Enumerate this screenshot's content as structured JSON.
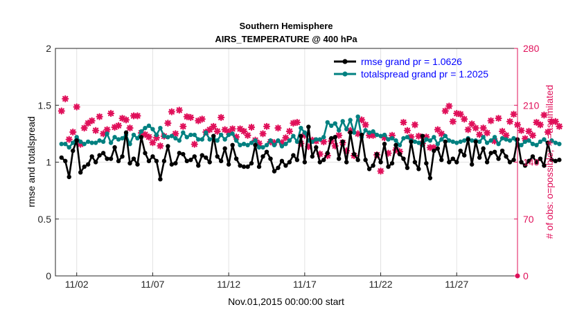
{
  "chart_data": {
    "type": "line",
    "title": [
      "Southern Hemisphere",
      "AIRS_TEMPERATURE @ 400 hPa"
    ],
    "xlabel": "Nov.01,2015 00:00:00 start",
    "ylabel_left": "rmse and totalspread",
    "ylabel_right": "# of obs: o=possible; ∗=assimilated",
    "x_ticks": [
      {
        "label": "11/02",
        "day": 2
      },
      {
        "label": "11/07",
        "day": 7
      },
      {
        "label": "11/12",
        "day": 12
      },
      {
        "label": "11/17",
        "day": 17
      },
      {
        "label": "11/22",
        "day": 22
      },
      {
        "label": "11/27",
        "day": 27
      }
    ],
    "xlim_days": [
      0.6,
      31.0
    ],
    "ylim_left": [
      0,
      2
    ],
    "yticks_left": [
      "0",
      "0.5",
      "1",
      "1.5",
      "2"
    ],
    "ylim_right": [
      0,
      280
    ],
    "yticks_right": [
      "0",
      "70",
      "140",
      "210",
      "280"
    ],
    "grid": true,
    "legend_position": "top-right",
    "series": [
      {
        "name": "rmse grand pr = 1.0626",
        "color": "#000000",
        "values": [
          1.04,
          1.01,
          0.87,
          1.1,
          1.19,
          0.91,
          0.96,
          0.98,
          1.05,
          1.0,
          1.06,
          1.08,
          1.03,
          1.03,
          1.13,
          1.01,
          1.05,
          1.26,
          0.99,
          1.03,
          0.98,
          1.22,
          1.08,
          1.01,
          1.05,
          1.01,
          0.85,
          1.01,
          1.14,
          0.98,
          0.99,
          1.08,
          1.07,
          1.01,
          1.02,
          1.05,
          0.97,
          1.06,
          1.04,
          1.0,
          1.23,
          1.05,
          1.01,
          1.12,
          0.98,
          1.15,
          1.03,
          0.97,
          0.96,
          0.96,
          0.99,
          1.15,
          0.96,
          1.05,
          1.09,
          1.03,
          0.92,
          0.95,
          1.01,
          0.97,
          1.0,
          1.06,
          1.02,
          1.23,
          1.0,
          1.31,
          1.05,
          1.13,
          1.0,
          1.02,
          1.08,
          1.21,
          1.22,
          1.03,
          1.18,
          1.0,
          1.26,
          1.07,
          1.02,
          1.24,
          1.02,
          0.94,
          0.97,
          1.07,
          1.0,
          1.16,
          0.96,
          0.99,
          1.15,
          1.07,
          1.03,
          0.95,
          1.18,
          1.0,
          0.94,
          1.23,
          0.99,
          0.86,
          1.1,
          1.12,
          1.02,
          1.18,
          1.0,
          1.03,
          1.0,
          1.1,
          1.06,
          1.2,
          0.98,
          1.18,
          1.04,
          1.12,
          1.0,
          1.08,
          1.09,
          1.03,
          1.1,
          1.05,
          1.0,
          1.02,
          1.2,
          1.0,
          0.97,
          1.01,
          1.05,
          1.0,
          1.03,
          0.97,
          1.17,
          1.02,
          1.01,
          1.02
        ]
      },
      {
        "name": "totalspread grand pr = 1.2025",
        "color": "#008080",
        "values": [
          1.16,
          1.16,
          1.13,
          1.17,
          1.22,
          1.18,
          1.16,
          1.18,
          1.17,
          1.17,
          1.19,
          1.18,
          1.25,
          1.17,
          1.22,
          1.2,
          1.21,
          1.24,
          1.16,
          1.24,
          1.21,
          1.27,
          1.3,
          1.32,
          1.29,
          1.24,
          1.3,
          1.23,
          1.22,
          1.23,
          1.21,
          1.19,
          1.26,
          1.22,
          1.24,
          1.24,
          1.2,
          1.2,
          1.26,
          1.2,
          1.21,
          1.19,
          1.24,
          1.2,
          1.24,
          1.25,
          1.19,
          1.15,
          1.16,
          1.15,
          1.17,
          1.19,
          1.13,
          1.13,
          1.15,
          1.19,
          1.15,
          1.19,
          1.14,
          1.16,
          1.19,
          1.23,
          1.18,
          1.3,
          1.26,
          1.19,
          1.18,
          1.2,
          1.2,
          1.22,
          1.35,
          1.32,
          1.34,
          1.28,
          1.36,
          1.29,
          1.37,
          1.26,
          1.4,
          1.22,
          1.28,
          1.26,
          1.27,
          1.24,
          1.23,
          1.24,
          1.2,
          1.21,
          1.19,
          1.15,
          1.21,
          1.22,
          1.19,
          1.18,
          1.17,
          1.15,
          1.2,
          1.19,
          1.22,
          1.16,
          1.2,
          1.23,
          1.19,
          1.18,
          1.17,
          1.18,
          1.19,
          1.21,
          1.19,
          1.19,
          1.18,
          1.22,
          1.17,
          1.19,
          1.22,
          1.16,
          1.21,
          1.2,
          1.19,
          1.21,
          1.16,
          1.15,
          1.18,
          1.19,
          1.16,
          1.15,
          1.18,
          1.2,
          1.16,
          1.19,
          1.17,
          1.16
        ]
      }
    ],
    "obs_series": {
      "name": "# of obs (possible / assimilated)",
      "color": "#e0105a",
      "values": [
        203,
        218,
        168,
        177,
        208,
        162,
        182,
        188,
        191,
        179,
        196,
        175,
        180,
        200,
        183,
        185,
        194,
        192,
        182,
        197,
        197,
        176,
        174,
        171,
        164,
        170,
        160,
        172,
        188,
        202,
        175,
        204,
        184,
        196,
        195,
        162,
        191,
        193,
        177,
        180,
        184,
        178,
        195,
        180,
        177,
        181,
        171,
        181,
        178,
        173,
        183,
        167,
        163,
        175,
        184,
        165,
        164,
        182,
        164,
        170,
        178,
        188,
        189,
        163,
        173,
        159,
        167,
        166,
        150,
        165,
        148,
        166,
        160,
        173,
        164,
        154,
        179,
        148,
        175,
        192,
        186,
        173,
        173,
        149,
        129,
        170,
        151,
        173,
        155,
        153,
        189,
        179,
        171,
        186,
        172,
        163,
        171,
        158,
        158,
        180,
        175,
        203,
        209,
        190,
        200,
        199,
        193,
        180,
        187,
        182,
        174,
        182,
        176,
        191,
        166,
        194,
        178,
        173,
        190,
        199,
        186,
        179,
        169,
        178,
        173,
        189,
        186,
        198,
        177,
        190,
        190,
        184
      ]
    }
  }
}
